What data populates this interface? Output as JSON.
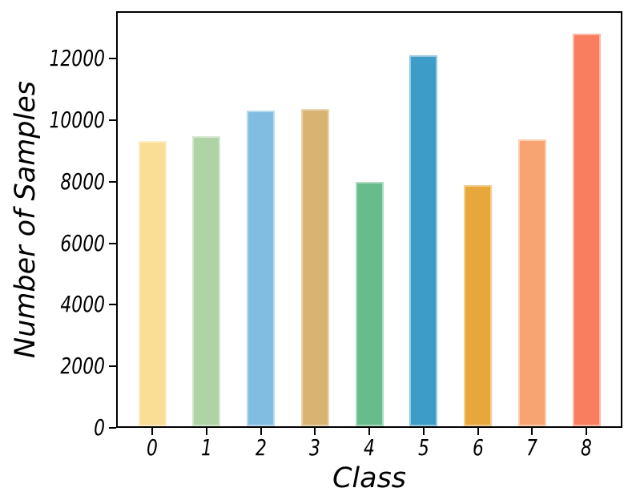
{
  "figure": {
    "background": "#ffffff",
    "axis_color": "#000000",
    "text_color": "#000000"
  },
  "chart_data": {
    "type": "bar",
    "title": "",
    "xlabel": "Class",
    "ylabel": "Number of Samples",
    "categories": [
      "0",
      "1",
      "2",
      "3",
      "4",
      "5",
      "6",
      "7",
      "8"
    ],
    "values": [
      9350,
      9500,
      10350,
      10400,
      8000,
      12150,
      7900,
      9400,
      12850
    ],
    "bar_colors": [
      "#fade96",
      "#aed4a6",
      "#81bde1",
      "#d9b371",
      "#66bd8b",
      "#3e9cc8",
      "#e7a73a",
      "#f8a472",
      "#f87e5f"
    ],
    "yticks": [
      0,
      2000,
      4000,
      6000,
      8000,
      10000,
      12000
    ],
    "ylim": [
      0,
      13545
    ],
    "grid": false,
    "legend": null,
    "tick_font_style": "italic"
  }
}
